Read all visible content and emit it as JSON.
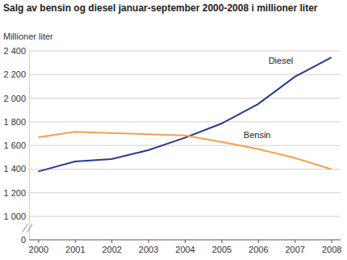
{
  "chart_data": {
    "type": "line",
    "title": "Salg av bensin og diesel januar-september 2000-2008 i millioner liter",
    "y_label": "Millioner liter",
    "categories": [
      "2000",
      "2001",
      "2002",
      "2003",
      "2004",
      "2005",
      "2006",
      "2007",
      "2008"
    ],
    "series": [
      {
        "name": "Diesel",
        "color": "#2b3990",
        "values": [
          1380,
          1465,
          1485,
          1560,
          1665,
          1785,
          1950,
          2180,
          2345
        ]
      },
      {
        "name": "Bensin",
        "color": "#f6a04d",
        "values": [
          1670,
          1715,
          1705,
          1695,
          1685,
          1630,
          1570,
          1495,
          1400
        ]
      }
    ],
    "ylim": [
      0,
      2400
    ],
    "yticks": [
      0,
      {
        "value": 1000,
        "label": "1 000"
      },
      {
        "value": 1200,
        "label": "1 200"
      },
      {
        "value": 1400,
        "label": "1 400"
      },
      {
        "value": 1600,
        "label": "1 600"
      },
      {
        "value": 1800,
        "label": "1 800"
      },
      {
        "value": 2000,
        "label": "2 000"
      },
      {
        "value": 2200,
        "label": "2 200"
      },
      {
        "value": 2400,
        "label": "2 400"
      }
    ],
    "grid": true
  }
}
